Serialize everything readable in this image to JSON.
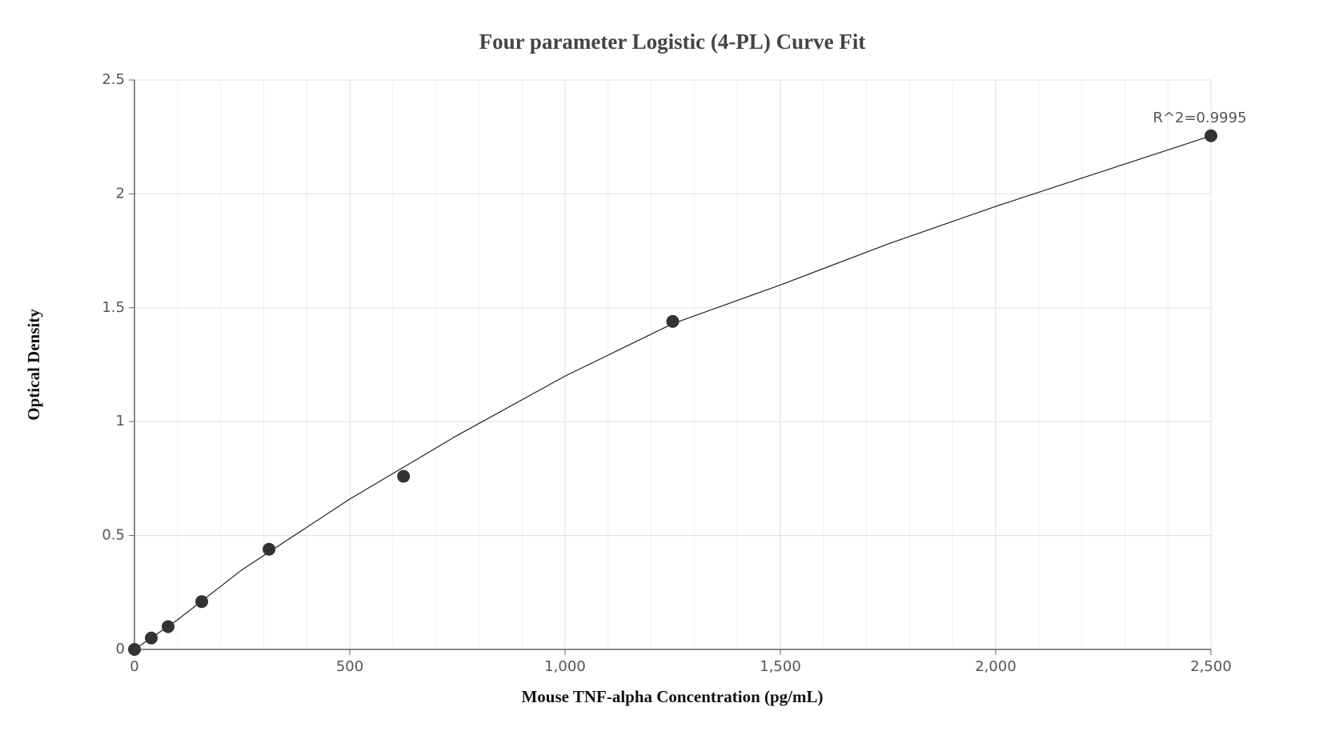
{
  "chart_data": {
    "type": "scatter",
    "title": "Four parameter Logistic (4-PL) Curve Fit",
    "x_label": "Mouse TNF-alpha Concentration (pg/mL)",
    "y_label": "Optical Density",
    "annotation": "R^2=0.9995",
    "x": [
      0,
      39.06,
      78.125,
      156.25,
      312.5,
      625,
      1250,
      2500
    ],
    "values": [
      0,
      0.05,
      0.1,
      0.21,
      0.44,
      0.76,
      1.44,
      2.255
    ],
    "color": "#333333",
    "fit": {
      "x": [
        0,
        100,
        250,
        500,
        750,
        1000,
        1250,
        1500,
        1750,
        2000,
        2250,
        2500
      ],
      "values": [
        0,
        0.13,
        0.35,
        0.66,
        0.94,
        1.2,
        1.43,
        1.6,
        1.78,
        1.945,
        2.1,
        2.255
      ],
      "color": "#222222"
    },
    "xlim": [
      0,
      2500
    ],
    "ylim": [
      0,
      2.5
    ],
    "xticks": [
      0,
      500,
      {
        "value": 1000,
        "label": "1,000"
      },
      {
        "value": 1500,
        "label": "1,500"
      },
      {
        "value": 2000,
        "label": "2,000"
      },
      {
        "value": 2500,
        "label": "2,500"
      }
    ],
    "xminorticks": [
      100,
      200,
      300,
      400,
      600,
      700,
      800,
      900,
      1100,
      1200,
      1300,
      1400,
      1600,
      1700,
      1800,
      1900,
      2100,
      2200,
      2300,
      2400
    ],
    "yticks": [
      0,
      0.5,
      1,
      1.5,
      2,
      2.5
    ],
    "grid": true
  }
}
